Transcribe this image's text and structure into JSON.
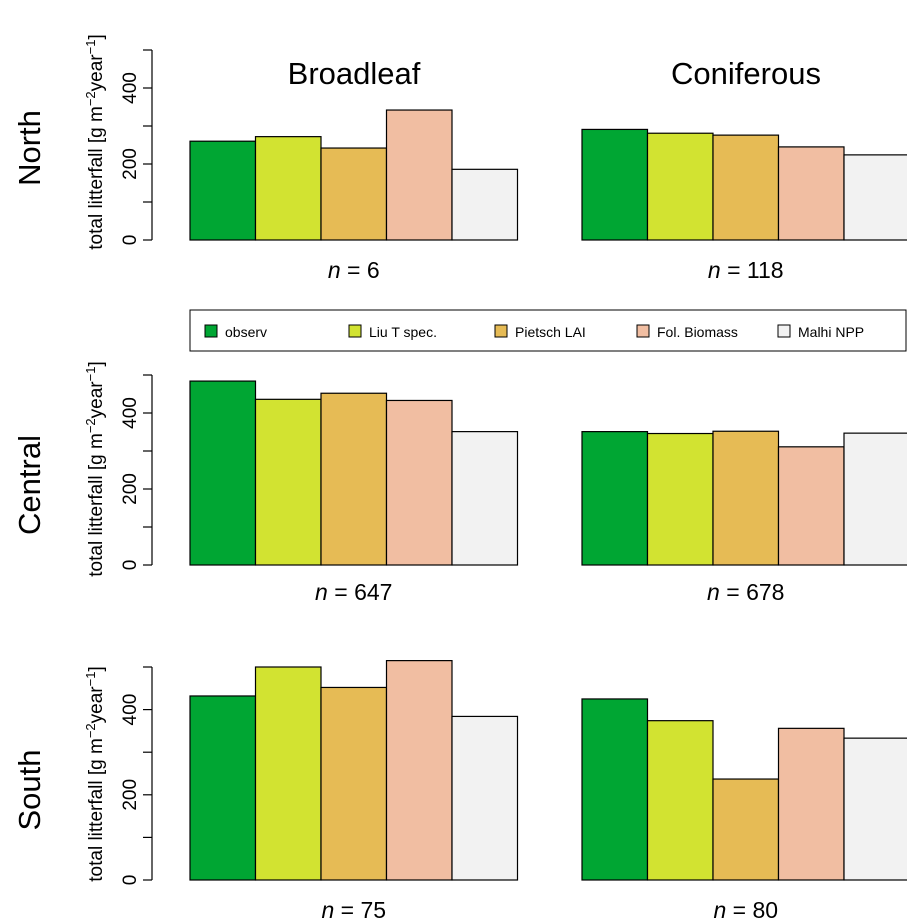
{
  "columns": [
    "Broadleaf",
    "Coniferous"
  ],
  "rows": [
    "North",
    "Central",
    "South"
  ],
  "ylabel_main": "total litterfall [g m",
  "ylabel_sup1": "−2",
  "ylabel_mid": "year",
  "ylabel_sup2": "−1",
  "ylabel_end": "]",
  "n_prefix": "n",
  "n_separator": " = ",
  "legend": {
    "items": [
      {
        "label": "observ",
        "color": "#00a633"
      },
      {
        "label": "Liu T spec.",
        "color": "#d2e331"
      },
      {
        "label": "Pietsch LAI",
        "color": "#e6bb55"
      },
      {
        "label": "Fol. Biomass",
        "color": "#f1bea2"
      },
      {
        "label": "Malhi NPP",
        "color": "#f2f2f2"
      }
    ]
  },
  "chart_data": [
    {
      "type": "bar",
      "row": "North",
      "column": "Broadleaf",
      "n": "6",
      "ylim": [
        0,
        500
      ],
      "yticks": [
        "0",
        "200",
        "400"
      ],
      "categories": [
        "observ",
        "Liu T spec.",
        "Pietsch LAI",
        "Fol. Biomass",
        "Malhi NPP"
      ],
      "values": [
        260,
        272,
        242,
        342,
        186
      ]
    },
    {
      "type": "bar",
      "row": "North",
      "column": "Coniferous",
      "n": "118",
      "ylim": [
        0,
        500
      ],
      "yticks": [],
      "categories": [
        "observ",
        "Liu T spec.",
        "Pietsch LAI",
        "Fol. Biomass",
        "Malhi NPP"
      ],
      "values": [
        291,
        281,
        276,
        245,
        224
      ]
    },
    {
      "type": "bar",
      "row": "Central",
      "column": "Broadleaf",
      "n": "647",
      "ylim": [
        0,
        500
      ],
      "yticks": [
        "0",
        "200",
        "400"
      ],
      "categories": [
        "observ",
        "Liu T spec.",
        "Pietsch LAI",
        "Fol. Biomass",
        "Malhi NPP"
      ],
      "values": [
        484,
        436,
        452,
        433,
        351
      ]
    },
    {
      "type": "bar",
      "row": "Central",
      "column": "Coniferous",
      "n": "678",
      "ylim": [
        0,
        500
      ],
      "yticks": [],
      "categories": [
        "observ",
        "Liu T spec.",
        "Pietsch LAI",
        "Fol. Biomass",
        "Malhi NPP"
      ],
      "values": [
        351,
        346,
        352,
        311,
        347
      ]
    },
    {
      "type": "bar",
      "row": "South",
      "column": "Broadleaf",
      "n": "75",
      "ylim": [
        0,
        500
      ],
      "yticks": [
        "0",
        "200",
        "400"
      ],
      "categories": [
        "observ",
        "Liu T spec.",
        "Pietsch LAI",
        "Fol. Biomass",
        "Malhi NPP"
      ],
      "values": [
        432,
        500,
        452,
        515,
        384
      ]
    },
    {
      "type": "bar",
      "row": "South",
      "column": "Coniferous",
      "n": "80",
      "ylim": [
        0,
        500
      ],
      "yticks": [],
      "categories": [
        "observ",
        "Liu T spec.",
        "Pietsch LAI",
        "Fol. Biomass",
        "Malhi NPP"
      ],
      "values": [
        425,
        374,
        237,
        356,
        333
      ]
    }
  ]
}
